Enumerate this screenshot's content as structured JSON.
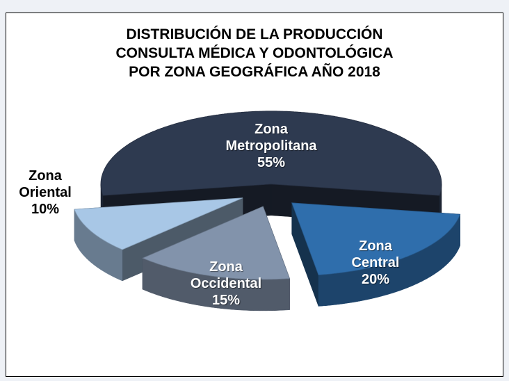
{
  "chart_data": {
    "type": "pie3d",
    "title": "DISTRIBUCIÓN  DE LA PRODUCCIÓN\nCONSULTA MÉDICA Y ODONTOLÓGICA\nPOR ZONA GEOGRÁFICA AÑO 2018",
    "categories": [
      "Zona Metropolitana",
      "Zona Central",
      "Zona Occidental",
      "Zona Oriental"
    ],
    "values": [
      55,
      20,
      15,
      10
    ],
    "value_labels": [
      "55%",
      "20%",
      "15%",
      "10%"
    ],
    "colors": [
      "#2e3a50",
      "#2f6eac",
      "#8293ab",
      "#a8c7e6"
    ]
  }
}
